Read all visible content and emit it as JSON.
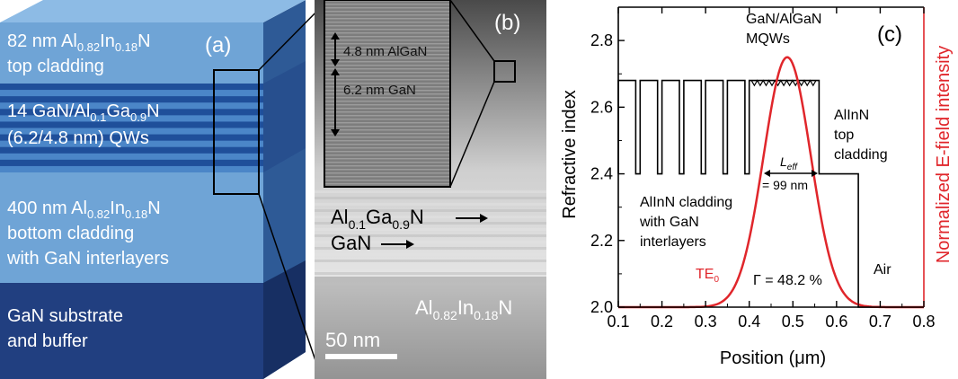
{
  "panel_a": {
    "label": "(a)",
    "top": {
      "thickness": "82 nm",
      "material_base": "Al",
      "al_sub": "0.82",
      "in": "In",
      "in_sub": "0.18",
      "n": "N",
      "desc": "top cladding"
    },
    "qw": {
      "prefix": "14 GaN/Al",
      "al_sub": "0.1",
      "ga": "Ga",
      "ga_sub": "0.9",
      "n": "N",
      "desc": "(6.2/4.8 nm) QWs"
    },
    "bottom": {
      "thickness": "400 nm",
      "material_base": "Al",
      "al_sub": "0.82",
      "in": "In",
      "in_sub": "0.18",
      "n": "N",
      "line2": "bottom cladding",
      "line3": "with GaN interlayers"
    },
    "substrate": {
      "line1": "GaN substrate",
      "line2": "and buffer"
    },
    "colors": {
      "top": "#6fa4d6",
      "qw_dark": "#1f4f9a",
      "qw_light": "#4b86c8",
      "bottom": "#6fa4d6",
      "substrate": "#2a4c8c",
      "side": "#3f6fa8",
      "side_dark": "#1d3870"
    }
  },
  "panel_b": {
    "label": "(b)",
    "inset_top": "4.8 nm AlGaN",
    "inset_bottom": "6.2 nm GaN",
    "algan": {
      "base": "Al",
      "al_sub": "0.1",
      "ga": "Ga",
      "ga_sub": "0.9",
      "n": "N"
    },
    "gan": "GaN",
    "alin": {
      "base": "Al",
      "al_sub": "0.82",
      "in": "In",
      "in_sub": "0.18",
      "n": "N"
    },
    "scale": "50 nm"
  },
  "chart_data": {
    "type": "line",
    "label": "(c)",
    "xlabel": "Position (μm)",
    "ylabel": "Refractive index",
    "y2label": "Normalized E-field intensity",
    "xlim": [
      0.1,
      0.8
    ],
    "ylim": [
      2.0,
      2.9
    ],
    "x_ticks": [
      "0.1",
      "0.2",
      "0.3",
      "0.4",
      "0.5",
      "0.6",
      "0.7",
      "0.8"
    ],
    "y_ticks": [
      "2.0",
      "2.2",
      "2.4",
      "2.6",
      "2.8"
    ],
    "series": [
      {
        "name": "Refractive index",
        "color": "#000000",
        "x": [
          0.1,
          0.1,
          0.14,
          0.14,
          0.15,
          0.15,
          0.19,
          0.19,
          0.2,
          0.2,
          0.24,
          0.24,
          0.25,
          0.25,
          0.29,
          0.29,
          0.3,
          0.3,
          0.34,
          0.34,
          0.35,
          0.35,
          0.39,
          0.39,
          0.4,
          0.4,
          0.56,
          0.56,
          0.65,
          0.65,
          0.8
        ],
        "y": [
          2.4,
          2.68,
          2.68,
          2.4,
          2.4,
          2.68,
          2.68,
          2.4,
          2.4,
          2.68,
          2.68,
          2.4,
          2.4,
          2.68,
          2.68,
          2.4,
          2.4,
          2.68,
          2.68,
          2.4,
          2.4,
          2.68,
          2.68,
          2.4,
          2.4,
          2.68,
          2.68,
          2.4,
          2.4,
          2.0,
          2.0
        ]
      },
      {
        "name": "TE0",
        "label_base": "TE",
        "label_sub": "0",
        "color": "#e0262b",
        "center": 0.487,
        "sigma": 0.054,
        "baseline": 2.0,
        "peak": 2.75
      }
    ],
    "annotations": {
      "mqw_line1": "GaN/AlGaN",
      "mqw_line2": "MQWs",
      "alinn_line1": "AlInN",
      "alinn_line2": "top",
      "alinn_line3": "cladding",
      "left_line1": "AlInN cladding",
      "left_line2": "with GaN",
      "left_line3": "interlayers",
      "leff_base": "L",
      "leff_sub": "eff",
      "leff_value": "= 99 nm",
      "gamma": "Γ = 48.2 %",
      "air": "Air"
    }
  }
}
